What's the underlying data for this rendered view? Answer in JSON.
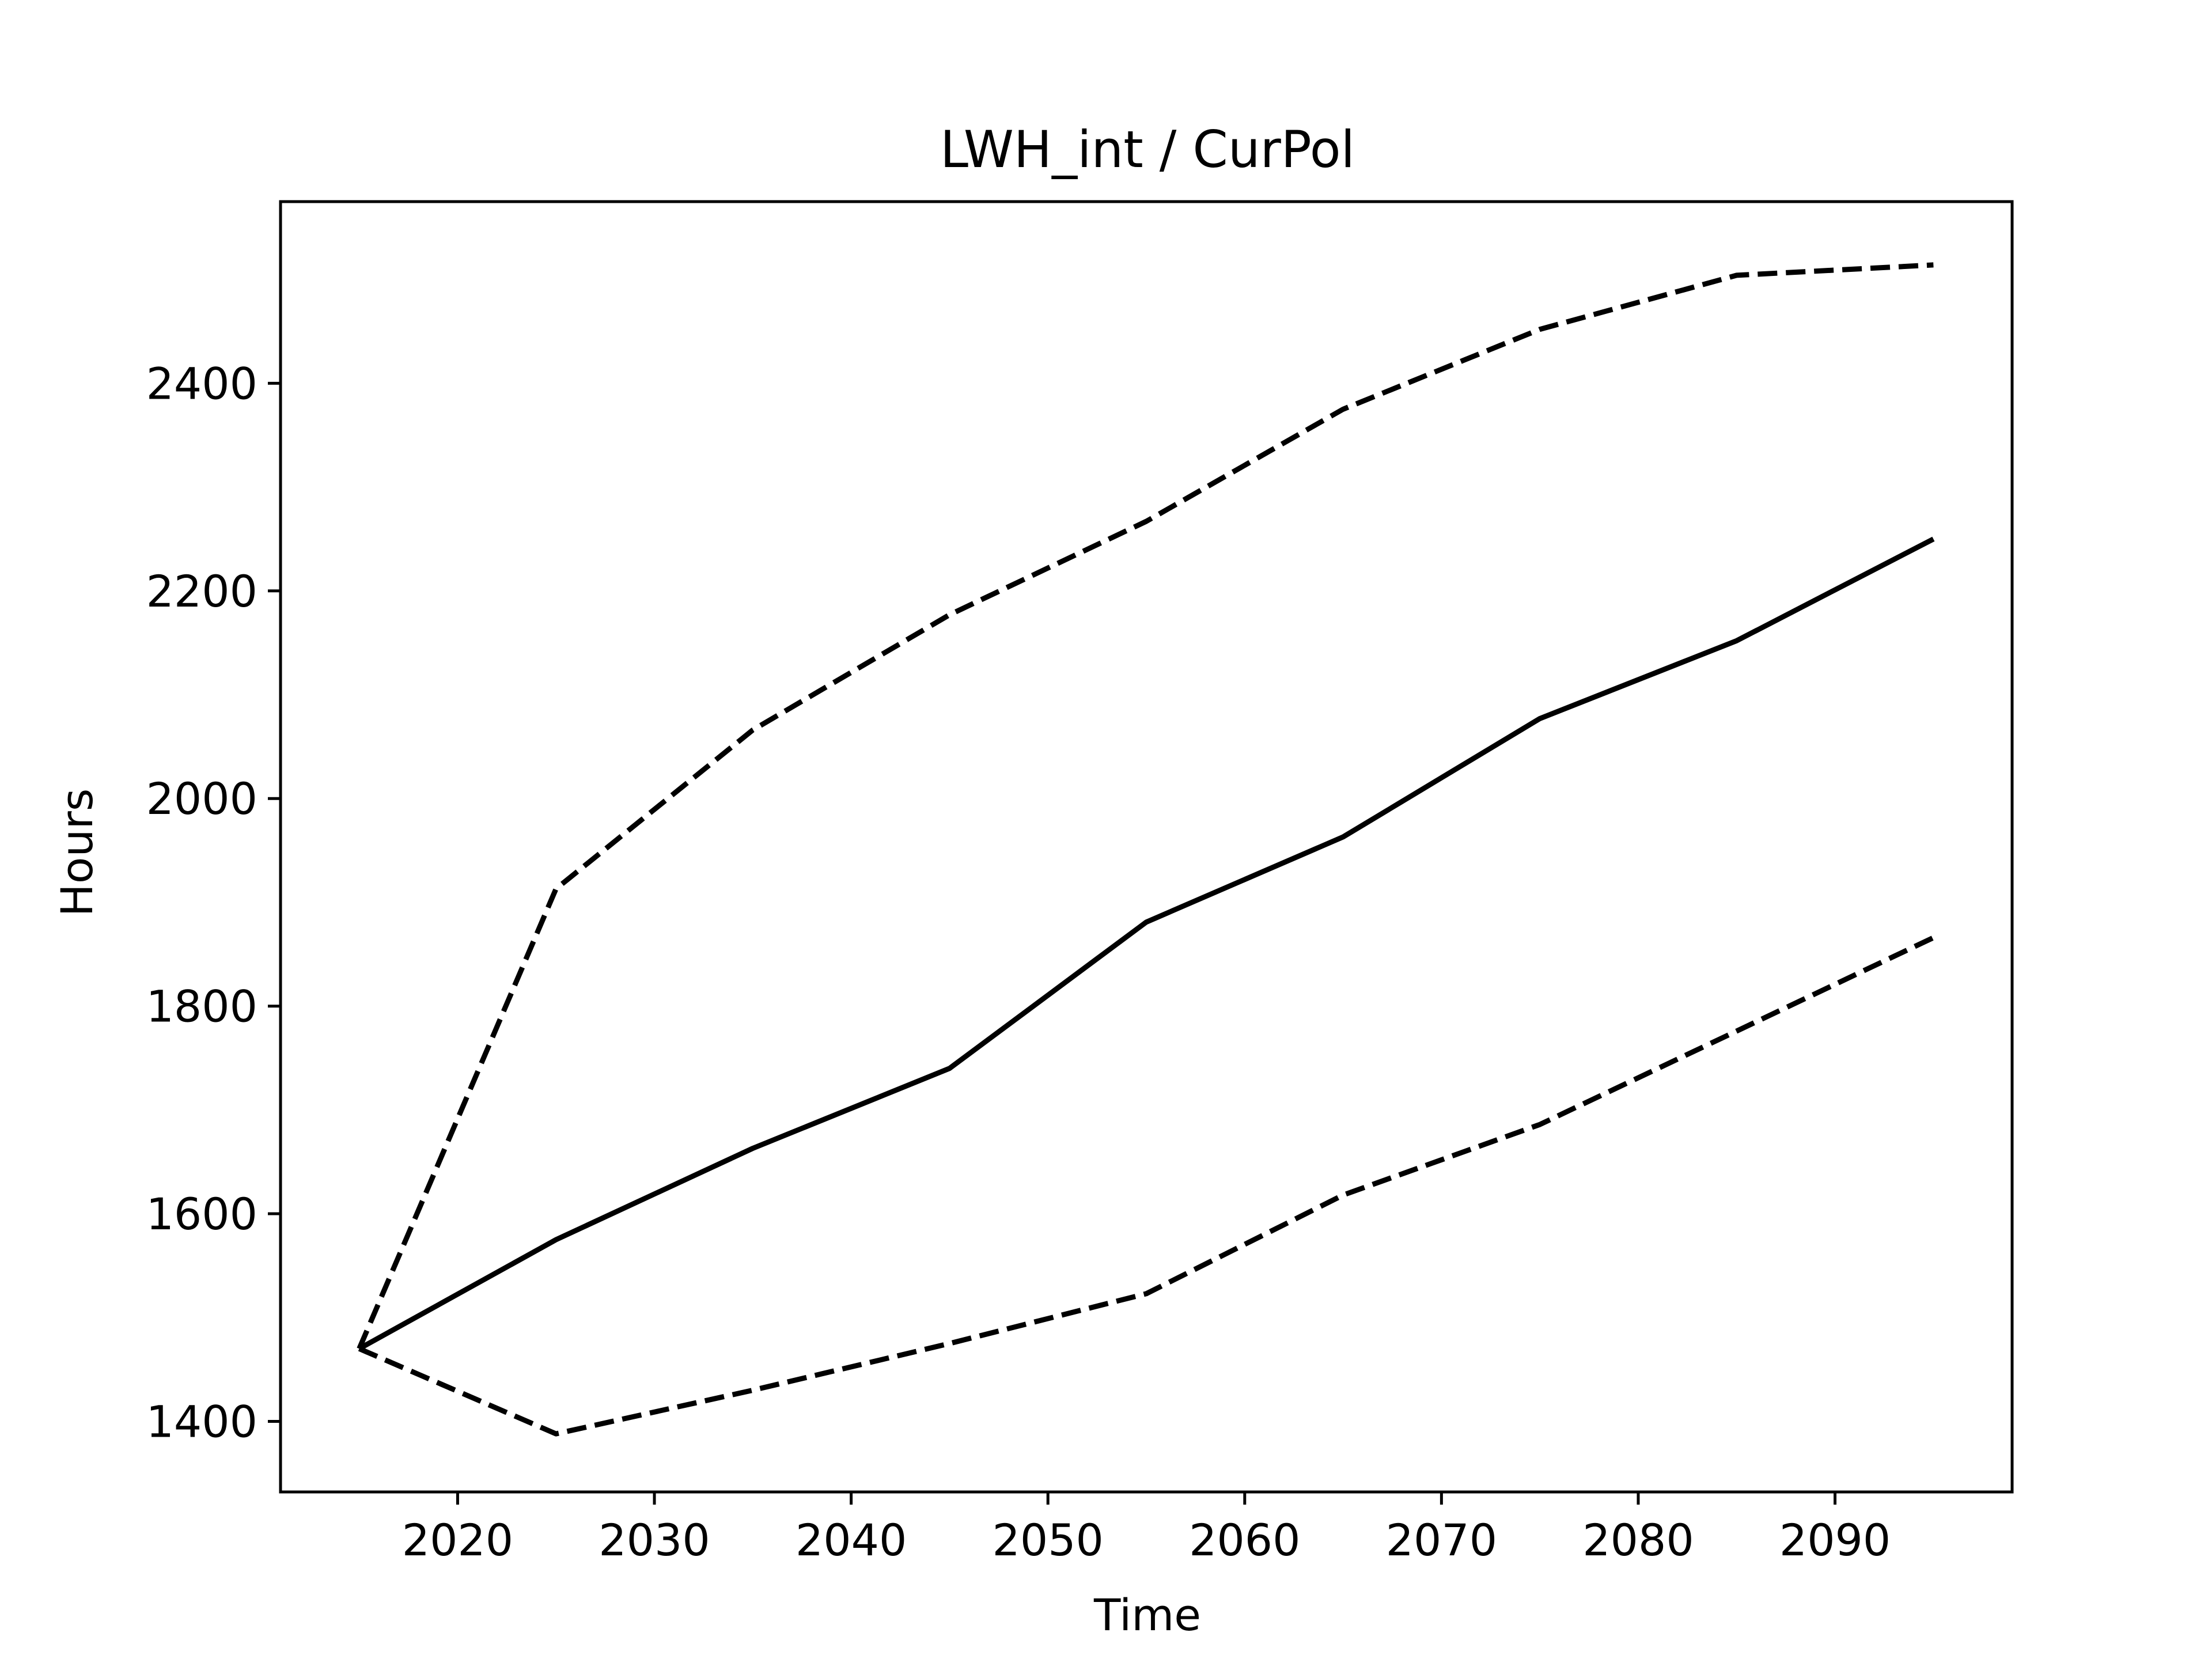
{
  "chart_data": {
    "type": "line",
    "title": "LWH_int / CurPol",
    "xlabel": "Time",
    "ylabel": "Hours",
    "xlim": [
      2011,
      2099
    ],
    "ylim": [
      1332,
      2575
    ],
    "x_ticks": [
      2020,
      2030,
      2040,
      2050,
      2060,
      2070,
      2080,
      2090
    ],
    "y_ticks": [
      1400,
      1600,
      1800,
      2000,
      2200,
      2400
    ],
    "grid": false,
    "x": [
      2015,
      2025,
      2035,
      2045,
      2055,
      2065,
      2075,
      2085,
      2095
    ],
    "series": [
      {
        "style": "solid",
        "color": "#000000",
        "values": [
          1470,
          1575,
          1663,
          1740,
          1881,
          1963,
          2077,
          2152,
          2250
        ]
      },
      {
        "style": "dashed",
        "color": "#000000",
        "values": [
          1470,
          1913,
          2066,
          2177,
          2267,
          2375,
          2452,
          2504,
          2514
        ]
      },
      {
        "style": "dashed",
        "color": "#000000",
        "values": [
          1470,
          1388,
          1430,
          1475,
          1523,
          1618,
          1686,
          1776,
          1866
        ]
      }
    ]
  }
}
